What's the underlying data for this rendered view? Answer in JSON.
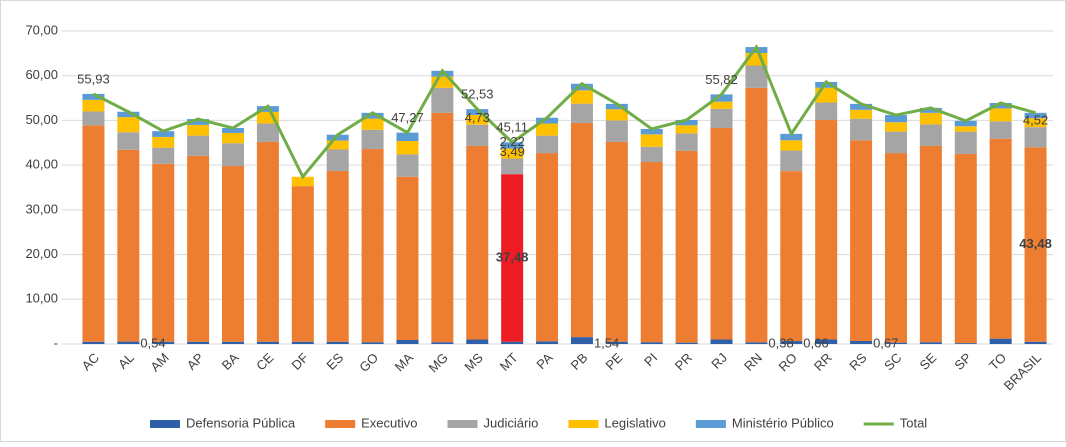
{
  "chart_data": {
    "type": "bar",
    "stacked": true,
    "categories": [
      "AC",
      "AL",
      "AM",
      "AP",
      "BA",
      "CE",
      "DF",
      "ES",
      "GO",
      "MA",
      "MG",
      "MS",
      "MT",
      "PA",
      "PB",
      "PE",
      "PI",
      "PR",
      "RJ",
      "RN",
      "RO",
      "RR",
      "RS",
      "SC",
      "SE",
      "SP",
      "TO",
      "BRASIL"
    ],
    "ylim": [
      0,
      70
    ],
    "yticks": [
      {
        "value": 0,
        "label": "-"
      },
      {
        "value": 10,
        "label": "10,00"
      },
      {
        "value": 20,
        "label": "20,00"
      },
      {
        "value": 30,
        "label": "30,00"
      },
      {
        "value": 40,
        "label": "40,00"
      },
      {
        "value": 50,
        "label": "50,00"
      },
      {
        "value": 60,
        "label": "60,00"
      },
      {
        "value": 70,
        "label": "70,00"
      }
    ],
    "grid": true,
    "legend": "bottom",
    "highlight_index": 12,
    "highlight_color": "#ee1c25",
    "series": [
      {
        "name": "Defensoria Pública",
        "color": "#2e5fa8",
        "values": [
          0.5,
          0.54,
          0.5,
          0.5,
          0.5,
          0.5,
          0.5,
          0.5,
          0.4,
          0.9,
          0.4,
          1.0,
          0.5,
          0.6,
          1.54,
          0.5,
          0.4,
          0.3,
          1.0,
          0.38,
          0.66,
          1.0,
          0.67,
          0.3,
          0.4,
          0.2,
          1.2,
          0.5
        ],
        "value_labels": [
          null,
          "0,54",
          null,
          null,
          null,
          null,
          null,
          null,
          null,
          null,
          null,
          null,
          null,
          null,
          "1,54",
          null,
          null,
          null,
          null,
          "0,38",
          "0,66",
          null,
          "0,67",
          null,
          null,
          null,
          null,
          null
        ]
      },
      {
        "name": "Executivo",
        "color": "#ed7d31",
        "values": [
          48.4,
          42.9,
          39.8,
          41.6,
          39.3,
          44.7,
          34.8,
          38.2,
          43.2,
          36.5,
          51.3,
          43.3,
          37.48,
          42.1,
          47.9,
          44.7,
          40.3,
          42.9,
          47.3,
          56.9,
          38.0,
          49.1,
          44.9,
          42.4,
          43.9,
          42.3,
          44.7,
          43.48
        ],
        "value_labels": [
          null,
          null,
          null,
          null,
          null,
          null,
          null,
          null,
          null,
          null,
          null,
          null,
          "37,48",
          null,
          null,
          null,
          null,
          null,
          null,
          null,
          null,
          null,
          null,
          null,
          null,
          null,
          null,
          "43,48"
        ]
      },
      {
        "name": "Judiciário",
        "color": "#a5a5a5",
        "values": [
          3.1,
          3.9,
          3.6,
          4.5,
          5.1,
          4.1,
          0,
          4.8,
          4.3,
          5.0,
          5.6,
          4.73,
          3.49,
          3.9,
          4.3,
          4.8,
          3.4,
          3.9,
          4.3,
          5.0,
          4.6,
          3.9,
          4.8,
          4.8,
          4.8,
          5.0,
          3.9,
          4.52
        ],
        "value_labels": [
          null,
          null,
          null,
          null,
          null,
          null,
          null,
          null,
          null,
          null,
          null,
          "4,73",
          "3,49",
          null,
          null,
          null,
          null,
          null,
          null,
          null,
          null,
          null,
          null,
          null,
          null,
          null,
          null,
          "4,52"
        ]
      },
      {
        "name": "Legislativo",
        "color": "#ffc000",
        "values": [
          2.6,
          3.4,
          2.4,
          2.4,
          2.3,
          2.6,
          2.1,
          2.0,
          2.5,
          3.0,
          2.5,
          2.2,
          2.22,
          2.7,
          3.0,
          2.5,
          2.8,
          1.8,
          1.6,
          2.8,
          2.3,
          3.3,
          2.0,
          2.1,
          2.6,
          1.2,
          2.9,
          2.0
        ],
        "value_labels": [
          null,
          null,
          null,
          null,
          null,
          null,
          null,
          null,
          null,
          null,
          null,
          null,
          "2,22",
          null,
          null,
          null,
          null,
          null,
          null,
          null,
          null,
          null,
          null,
          null,
          null,
          null,
          null,
          null
        ]
      },
      {
        "name": "Ministério Público",
        "color": "#5b9bd5",
        "values": [
          1.33,
          1.2,
          1.3,
          1.3,
          1.1,
          1.3,
          0,
          1.3,
          1.3,
          1.87,
          1.3,
          1.3,
          1.42,
          1.3,
          1.46,
          1.2,
          1.2,
          1.2,
          1.62,
          1.32,
          1.44,
          1.3,
          1.33,
          1.6,
          1.1,
          1.2,
          1.2,
          1.2
        ]
      },
      {
        "name": "Total",
        "color": "#70ad47",
        "type": "line",
        "values": [
          55.93,
          51.94,
          47.6,
          50.3,
          48.3,
          53.2,
          37.4,
          46.8,
          51.7,
          47.27,
          61.1,
          52.53,
          45.11,
          50.6,
          58.2,
          53.7,
          48.1,
          50.1,
          55.82,
          66.4,
          47.0,
          58.6,
          53.7,
          51.2,
          52.8,
          49.9,
          53.9,
          51.7
        ],
        "value_labels": [
          "55,93",
          null,
          null,
          null,
          null,
          null,
          null,
          null,
          null,
          "47,27",
          null,
          "52,53",
          "45,11",
          null,
          null,
          null,
          null,
          null,
          "55,82",
          null,
          null,
          null,
          null,
          null,
          null,
          null,
          null,
          null
        ]
      }
    ]
  }
}
